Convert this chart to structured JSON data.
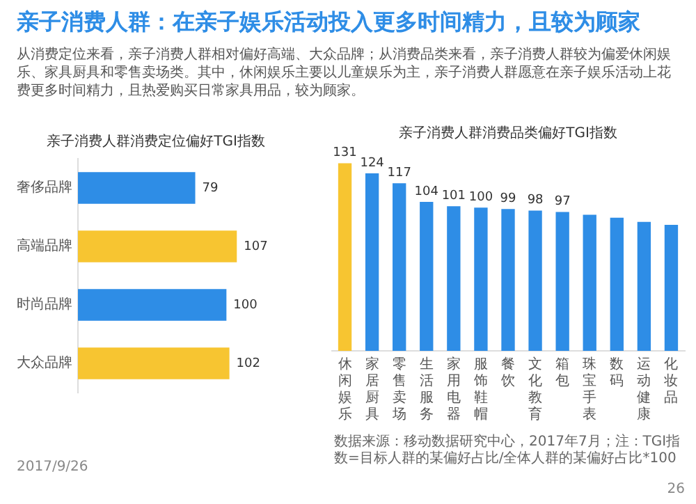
{
  "chart_data": [
    {
      "type": "other",
      "title": "亲子消费人群：在亲子娱乐活动投入更多时间精力，且较为顾家",
      "subtitle": "从消费定位来看，亲子消费人群相对偏好高端、大众品牌；从消费品类来看，亲子消费人群较为偏爱休闲娱乐、家具厨具和零售卖场类。其中，休闲娱乐主要以儿童娱乐为主，亲子消费人群愿意在亲子娱乐活动上花费更多时间精力，且热爱购买日常家具用品，较为顾家。"
    },
    {
      "type": "bar",
      "title": "亲子消费人群消费定位偏好TGI指数",
      "orientation": "horizontal",
      "categories": [
        "奢侈品牌",
        "高端品牌",
        "时尚品牌",
        "大众品牌"
      ],
      "values": [
        79,
        107,
        100,
        102
      ],
      "colors": [
        "#2e8de6",
        "#f7c531",
        "#2e8de6",
        "#f7c531"
      ],
      "data_labels": true,
      "grid": false,
      "tick_labels": "y"
    },
    {
      "type": "bar",
      "title": "亲子消费人群消费品类偏好TGI指数",
      "categories": [
        "休闲娱乐",
        "家居厨具",
        "零售卖场",
        "生活服务",
        "家用电器",
        "服饰鞋帽",
        "餐饮",
        "文化教育",
        "箱包",
        "珠宝手表",
        "数码",
        "运动健康",
        "化妆品"
      ],
      "values": [
        131,
        124,
        117,
        104,
        101,
        100,
        99,
        98,
        97,
        95,
        93,
        90,
        88
      ],
      "value_labels": [
        "131",
        "124",
        "117",
        "104",
        "101",
        "100",
        "99",
        "98",
        "97",
        null,
        null,
        null,
        null
      ],
      "colors": [
        "#f7c531",
        "#2e8de6",
        "#2e8de6",
        "#2e8de6",
        "#2e8de6",
        "#2e8de6",
        "#2e8de6",
        "#2e8de6",
        "#2e8de6",
        "#2e8de6",
        "#2e8de6",
        "#2e8de6",
        "#2e8de6"
      ],
      "grid": false,
      "tick_labels": "x",
      "annotations": [
        "2017/9/26",
        "数据来源：移动数据研究中心，2017年7月；注：TGI指数=目标人群的某偏好占比/全体人群的某偏好占比*100",
        "26"
      ]
    }
  ]
}
